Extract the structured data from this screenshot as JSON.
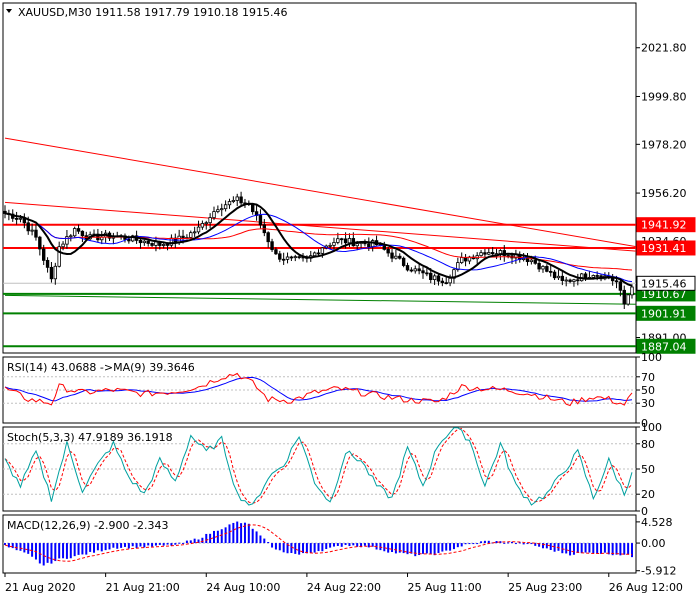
{
  "colors": {
    "background": "#ffffff",
    "frame": "#000000",
    "grid": "#c0c0c0",
    "bull": "#000000",
    "bear": "#000000",
    "resistance": "#ff0000",
    "support": "#008000",
    "price_line": "#c0c0c0",
    "ma_fast": "#000000",
    "ma_mid": "#0000ff",
    "ma_slow": "#ff0000",
    "rsi": "#ff0000",
    "rsi_ma": "#0000ff",
    "stoch_main": "#00a0a0",
    "stoch_signal": "#ff0000",
    "macd_hist": "#0000ff",
    "macd_signal": "#ff0000"
  },
  "chart_data": {
    "type": "line",
    "symbol_header": "XAUUSD,M30  1911.58 1917.79 1910.18 1915.46",
    "price_ylim": [
      1884,
      2042
    ],
    "price_ticks": [
      "2021.80",
      "1999.80",
      "1978.20",
      "1956.20",
      "1891.00"
    ],
    "price_tick_values": [
      2021.8,
      1999.8,
      1978.2,
      1956.2,
      1891.0
    ],
    "hidden_tick": {
      "label": "1934.60",
      "value": 1934.6
    },
    "current_price": {
      "label": "1915.46",
      "value": 1915.46
    },
    "x_labels": [
      "21 Aug 2020",
      "21 Aug 21:00",
      "24 Aug 10:00",
      "24 Aug 22:00",
      "25 Aug 11:00",
      "25 Aug 23:00",
      "26 Aug 12:00"
    ],
    "x_label_index": [
      0,
      26,
      52,
      78,
      104,
      130,
      156
    ],
    "bar_count": 163,
    "levels": [
      {
        "label": "1941.92",
        "value": 1941.92,
        "kind": "resistance"
      },
      {
        "label": "1931.41",
        "value": 1931.41,
        "kind": "resistance"
      },
      {
        "label": "1910.67",
        "value": 1910.67,
        "kind": "support"
      },
      {
        "label": "1901.91",
        "value": 1901.91,
        "kind": "support"
      },
      {
        "label": "1887.04",
        "value": 1887.04,
        "kind": "support"
      }
    ],
    "trendlines": [
      {
        "kind": "resistance",
        "from": [
          0,
          1981
        ],
        "to": [
          165,
          1932
        ]
      },
      {
        "kind": "resistance",
        "from": [
          0,
          1952
        ],
        "to": [
          165,
          1930
        ]
      },
      {
        "kind": "support",
        "from": [
          0,
          1910
        ],
        "to": [
          165,
          1906
        ]
      }
    ],
    "close_anchors": [
      [
        0,
        1947
      ],
      [
        4,
        1945
      ],
      [
        8,
        1936
      ],
      [
        12,
        1917
      ],
      [
        14,
        1932
      ],
      [
        18,
        1940
      ],
      [
        22,
        1936
      ],
      [
        28,
        1937
      ],
      [
        34,
        1935
      ],
      [
        40,
        1933
      ],
      [
        46,
        1936
      ],
      [
        50,
        1940
      ],
      [
        55,
        1950
      ],
      [
        60,
        1953
      ],
      [
        63,
        1951
      ],
      [
        66,
        1942
      ],
      [
        70,
        1928
      ],
      [
        74,
        1926
      ],
      [
        78,
        1926
      ],
      [
        82,
        1932
      ],
      [
        86,
        1935
      ],
      [
        90,
        1934
      ],
      [
        96,
        1933
      ],
      [
        100,
        1928
      ],
      [
        104,
        1923
      ],
      [
        110,
        1918
      ],
      [
        114,
        1917
      ],
      [
        118,
        1926
      ],
      [
        124,
        1930
      ],
      [
        130,
        1929
      ],
      [
        136,
        1926
      ],
      [
        140,
        1921
      ],
      [
        144,
        1916
      ],
      [
        148,
        1918
      ],
      [
        152,
        1920
      ],
      [
        156,
        1918
      ],
      [
        158,
        1916
      ],
      [
        160,
        1906
      ],
      [
        162,
        1915
      ]
    ],
    "rsi": {
      "label": "RSI(14) 43.0688  ->MA(9) 39.3646",
      "ylim": [
        0,
        100
      ],
      "ticks": [
        "100",
        "70",
        "50",
        "30",
        "0"
      ],
      "tick_values": [
        100,
        70,
        50,
        30,
        0
      ],
      "anchors": [
        [
          0,
          52
        ],
        [
          6,
          36
        ],
        [
          12,
          30
        ],
        [
          14,
          55
        ],
        [
          20,
          46
        ],
        [
          28,
          50
        ],
        [
          36,
          44
        ],
        [
          44,
          48
        ],
        [
          50,
          55
        ],
        [
          56,
          70
        ],
        [
          60,
          75
        ],
        [
          64,
          60
        ],
        [
          68,
          36
        ],
        [
          74,
          34
        ],
        [
          80,
          46
        ],
        [
          86,
          52
        ],
        [
          92,
          46
        ],
        [
          98,
          40
        ],
        [
          104,
          35
        ],
        [
          112,
          32
        ],
        [
          118,
          55
        ],
        [
          124,
          52
        ],
        [
          130,
          50
        ],
        [
          136,
          44
        ],
        [
          140,
          38
        ],
        [
          146,
          30
        ],
        [
          152,
          40
        ],
        [
          156,
          36
        ],
        [
          160,
          28
        ],
        [
          162,
          43
        ]
      ]
    },
    "stoch": {
      "label": "Stoch(5,3,3) 47.9189 36.1918",
      "ylim": [
        0,
        100
      ],
      "ticks": [
        "100",
        "80",
        "50",
        "20",
        "0"
      ],
      "tick_values": [
        100,
        80,
        50,
        20,
        0
      ],
      "anchors": [
        [
          0,
          60
        ],
        [
          4,
          30
        ],
        [
          8,
          70
        ],
        [
          12,
          15
        ],
        [
          16,
          80
        ],
        [
          20,
          25
        ],
        [
          24,
          55
        ],
        [
          28,
          80
        ],
        [
          32,
          40
        ],
        [
          36,
          20
        ],
        [
          40,
          60
        ],
        [
          44,
          35
        ],
        [
          48,
          90
        ],
        [
          52,
          70
        ],
        [
          56,
          85
        ],
        [
          60,
          20
        ],
        [
          64,
          5
        ],
        [
          68,
          40
        ],
        [
          72,
          55
        ],
        [
          76,
          90
        ],
        [
          80,
          35
        ],
        [
          84,
          10
        ],
        [
          88,
          70
        ],
        [
          92,
          60
        ],
        [
          96,
          30
        ],
        [
          100,
          15
        ],
        [
          104,
          75
        ],
        [
          108,
          30
        ],
        [
          112,
          80
        ],
        [
          116,
          100
        ],
        [
          120,
          85
        ],
        [
          124,
          30
        ],
        [
          128,
          80
        ],
        [
          132,
          30
        ],
        [
          136,
          10
        ],
        [
          140,
          20
        ],
        [
          144,
          45
        ],
        [
          148,
          70
        ],
        [
          152,
          15
        ],
        [
          156,
          60
        ],
        [
          160,
          20
        ],
        [
          162,
          48
        ]
      ]
    },
    "macd": {
      "label": "MACD(12,26,9) -2.900 -2.343",
      "ylim": [
        -6.4,
        6.0
      ],
      "ticks": [
        "4.528",
        "0.00",
        "-5.912"
      ],
      "tick_values": [
        4.528,
        0.0,
        -5.912
      ],
      "anchors": [
        [
          0,
          -0.6
        ],
        [
          6,
          -2.5
        ],
        [
          10,
          -4.8
        ],
        [
          14,
          -3.5
        ],
        [
          20,
          -2.5
        ],
        [
          28,
          -1.0
        ],
        [
          36,
          -0.8
        ],
        [
          44,
          -0.4
        ],
        [
          50,
          1.0
        ],
        [
          56,
          3.2
        ],
        [
          60,
          4.5
        ],
        [
          63,
          4.0
        ],
        [
          66,
          1.5
        ],
        [
          70,
          -1.5
        ],
        [
          76,
          -2.5
        ],
        [
          82,
          -1.5
        ],
        [
          88,
          -0.4
        ],
        [
          94,
          -0.8
        ],
        [
          100,
          -2.0
        ],
        [
          106,
          -2.6
        ],
        [
          112,
          -2.3
        ],
        [
          118,
          -0.6
        ],
        [
          124,
          0.4
        ],
        [
          130,
          0.2
        ],
        [
          136,
          -0.3
        ],
        [
          140,
          -1.3
        ],
        [
          146,
          -2.4
        ],
        [
          152,
          -2.0
        ],
        [
          156,
          -2.3
        ],
        [
          160,
          -2.5
        ],
        [
          162,
          -2.9
        ]
      ]
    }
  }
}
